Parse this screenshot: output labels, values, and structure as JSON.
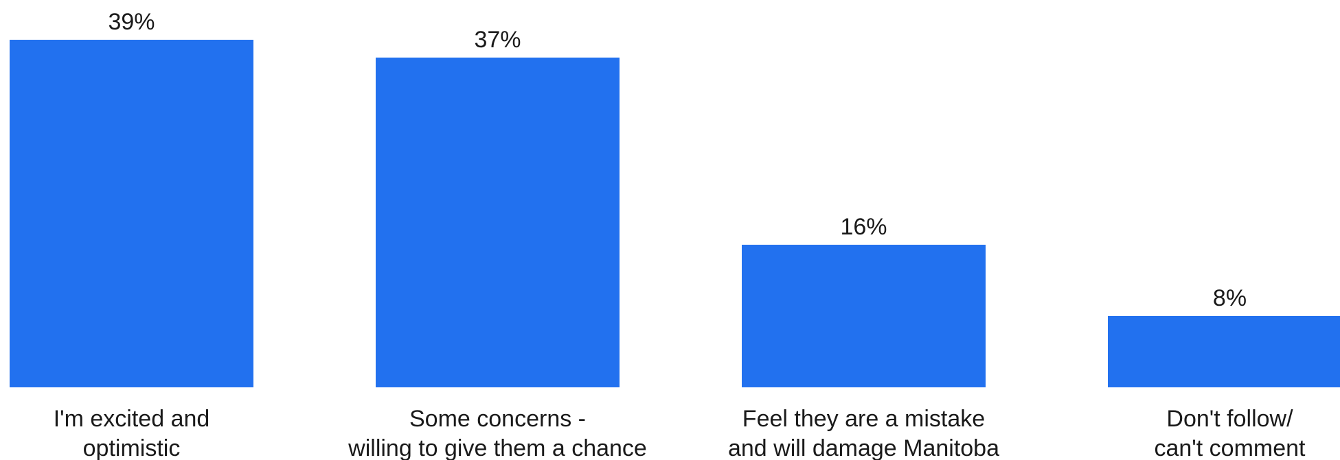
{
  "chart_data": {
    "type": "bar",
    "categories": [
      [
        "I'm excited and",
        "optimistic"
      ],
      [
        "Some concerns -",
        "willing to give them a chance"
      ],
      [
        "Feel they are a mistake",
        "and will damage Manitoba"
      ],
      [
        "Don't follow/",
        "can't comment"
      ]
    ],
    "values": [
      39,
      37,
      16,
      8
    ],
    "value_labels": [
      "39%",
      "37%",
      "16%",
      "8%"
    ],
    "ylim": [
      0,
      39
    ],
    "bar_color": "#2271ef",
    "grid": false,
    "legend": "none"
  }
}
